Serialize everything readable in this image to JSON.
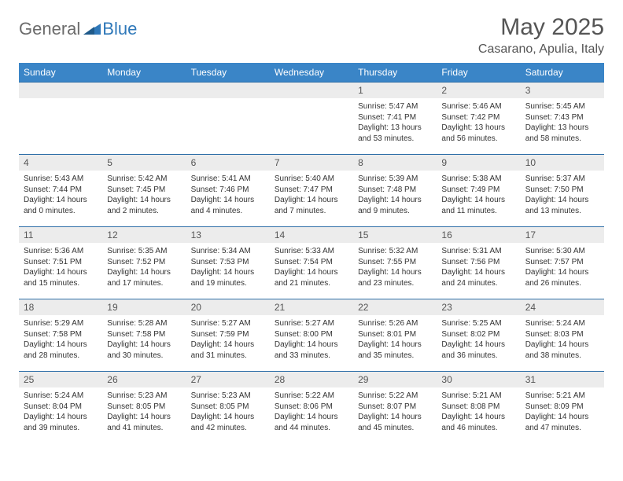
{
  "brand": {
    "part1": "General",
    "part2": "Blue"
  },
  "title": "May 2025",
  "location": "Casarano, Apulia, Italy",
  "colors": {
    "header_bg": "#3a85c7",
    "row_border": "#2f6fa8",
    "daynum_bg": "#ececec",
    "brand_gray": "#6b6b6b",
    "brand_blue": "#2f78b9"
  },
  "dayHeaders": [
    "Sunday",
    "Monday",
    "Tuesday",
    "Wednesday",
    "Thursday",
    "Friday",
    "Saturday"
  ],
  "weeks": [
    [
      {
        "empty": true
      },
      {
        "empty": true
      },
      {
        "empty": true
      },
      {
        "empty": true
      },
      {
        "n": "1",
        "sunrise": "5:47 AM",
        "sunset": "7:41 PM",
        "daylight": "13 hours and 53 minutes."
      },
      {
        "n": "2",
        "sunrise": "5:46 AM",
        "sunset": "7:42 PM",
        "daylight": "13 hours and 56 minutes."
      },
      {
        "n": "3",
        "sunrise": "5:45 AM",
        "sunset": "7:43 PM",
        "daylight": "13 hours and 58 minutes."
      }
    ],
    [
      {
        "n": "4",
        "sunrise": "5:43 AM",
        "sunset": "7:44 PM",
        "daylight": "14 hours and 0 minutes."
      },
      {
        "n": "5",
        "sunrise": "5:42 AM",
        "sunset": "7:45 PM",
        "daylight": "14 hours and 2 minutes."
      },
      {
        "n": "6",
        "sunrise": "5:41 AM",
        "sunset": "7:46 PM",
        "daylight": "14 hours and 4 minutes."
      },
      {
        "n": "7",
        "sunrise": "5:40 AM",
        "sunset": "7:47 PM",
        "daylight": "14 hours and 7 minutes."
      },
      {
        "n": "8",
        "sunrise": "5:39 AM",
        "sunset": "7:48 PM",
        "daylight": "14 hours and 9 minutes."
      },
      {
        "n": "9",
        "sunrise": "5:38 AM",
        "sunset": "7:49 PM",
        "daylight": "14 hours and 11 minutes."
      },
      {
        "n": "10",
        "sunrise": "5:37 AM",
        "sunset": "7:50 PM",
        "daylight": "14 hours and 13 minutes."
      }
    ],
    [
      {
        "n": "11",
        "sunrise": "5:36 AM",
        "sunset": "7:51 PM",
        "daylight": "14 hours and 15 minutes."
      },
      {
        "n": "12",
        "sunrise": "5:35 AM",
        "sunset": "7:52 PM",
        "daylight": "14 hours and 17 minutes."
      },
      {
        "n": "13",
        "sunrise": "5:34 AM",
        "sunset": "7:53 PM",
        "daylight": "14 hours and 19 minutes."
      },
      {
        "n": "14",
        "sunrise": "5:33 AM",
        "sunset": "7:54 PM",
        "daylight": "14 hours and 21 minutes."
      },
      {
        "n": "15",
        "sunrise": "5:32 AM",
        "sunset": "7:55 PM",
        "daylight": "14 hours and 23 minutes."
      },
      {
        "n": "16",
        "sunrise": "5:31 AM",
        "sunset": "7:56 PM",
        "daylight": "14 hours and 24 minutes."
      },
      {
        "n": "17",
        "sunrise": "5:30 AM",
        "sunset": "7:57 PM",
        "daylight": "14 hours and 26 minutes."
      }
    ],
    [
      {
        "n": "18",
        "sunrise": "5:29 AM",
        "sunset": "7:58 PM",
        "daylight": "14 hours and 28 minutes."
      },
      {
        "n": "19",
        "sunrise": "5:28 AM",
        "sunset": "7:58 PM",
        "daylight": "14 hours and 30 minutes."
      },
      {
        "n": "20",
        "sunrise": "5:27 AM",
        "sunset": "7:59 PM",
        "daylight": "14 hours and 31 minutes."
      },
      {
        "n": "21",
        "sunrise": "5:27 AM",
        "sunset": "8:00 PM",
        "daylight": "14 hours and 33 minutes."
      },
      {
        "n": "22",
        "sunrise": "5:26 AM",
        "sunset": "8:01 PM",
        "daylight": "14 hours and 35 minutes."
      },
      {
        "n": "23",
        "sunrise": "5:25 AM",
        "sunset": "8:02 PM",
        "daylight": "14 hours and 36 minutes."
      },
      {
        "n": "24",
        "sunrise": "5:24 AM",
        "sunset": "8:03 PM",
        "daylight": "14 hours and 38 minutes."
      }
    ],
    [
      {
        "n": "25",
        "sunrise": "5:24 AM",
        "sunset": "8:04 PM",
        "daylight": "14 hours and 39 minutes."
      },
      {
        "n": "26",
        "sunrise": "5:23 AM",
        "sunset": "8:05 PM",
        "daylight": "14 hours and 41 minutes."
      },
      {
        "n": "27",
        "sunrise": "5:23 AM",
        "sunset": "8:05 PM",
        "daylight": "14 hours and 42 minutes."
      },
      {
        "n": "28",
        "sunrise": "5:22 AM",
        "sunset": "8:06 PM",
        "daylight": "14 hours and 44 minutes."
      },
      {
        "n": "29",
        "sunrise": "5:22 AM",
        "sunset": "8:07 PM",
        "daylight": "14 hours and 45 minutes."
      },
      {
        "n": "30",
        "sunrise": "5:21 AM",
        "sunset": "8:08 PM",
        "daylight": "14 hours and 46 minutes."
      },
      {
        "n": "31",
        "sunrise": "5:21 AM",
        "sunset": "8:09 PM",
        "daylight": "14 hours and 47 minutes."
      }
    ]
  ]
}
